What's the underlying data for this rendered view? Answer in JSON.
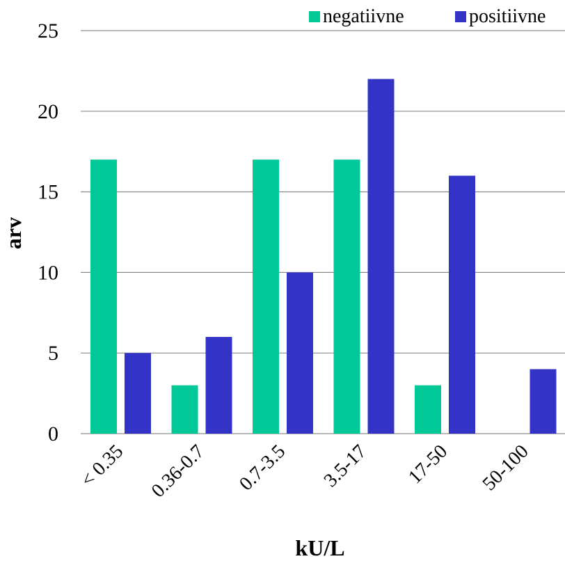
{
  "chart_data": {
    "type": "bar",
    "title": "",
    "xlabel": "kU/L",
    "ylabel": "arv",
    "categories": [
      "< 0.35",
      "0.36-0.7",
      "0.7-3.5",
      "3.5-17",
      "17-50",
      "50-100"
    ],
    "series": [
      {
        "name": "negatiivne",
        "color": "#00C896",
        "values": [
          17,
          3,
          17,
          17,
          3,
          0
        ]
      },
      {
        "name": "positiivne",
        "color": "#3333C8",
        "values": [
          5,
          6,
          10,
          22,
          16,
          4
        ]
      }
    ],
    "ylim": [
      0,
      25
    ],
    "yticks": [
      "0",
      "5",
      "10",
      "15",
      "20",
      "25"
    ],
    "grid": true,
    "legend": "top-right"
  }
}
